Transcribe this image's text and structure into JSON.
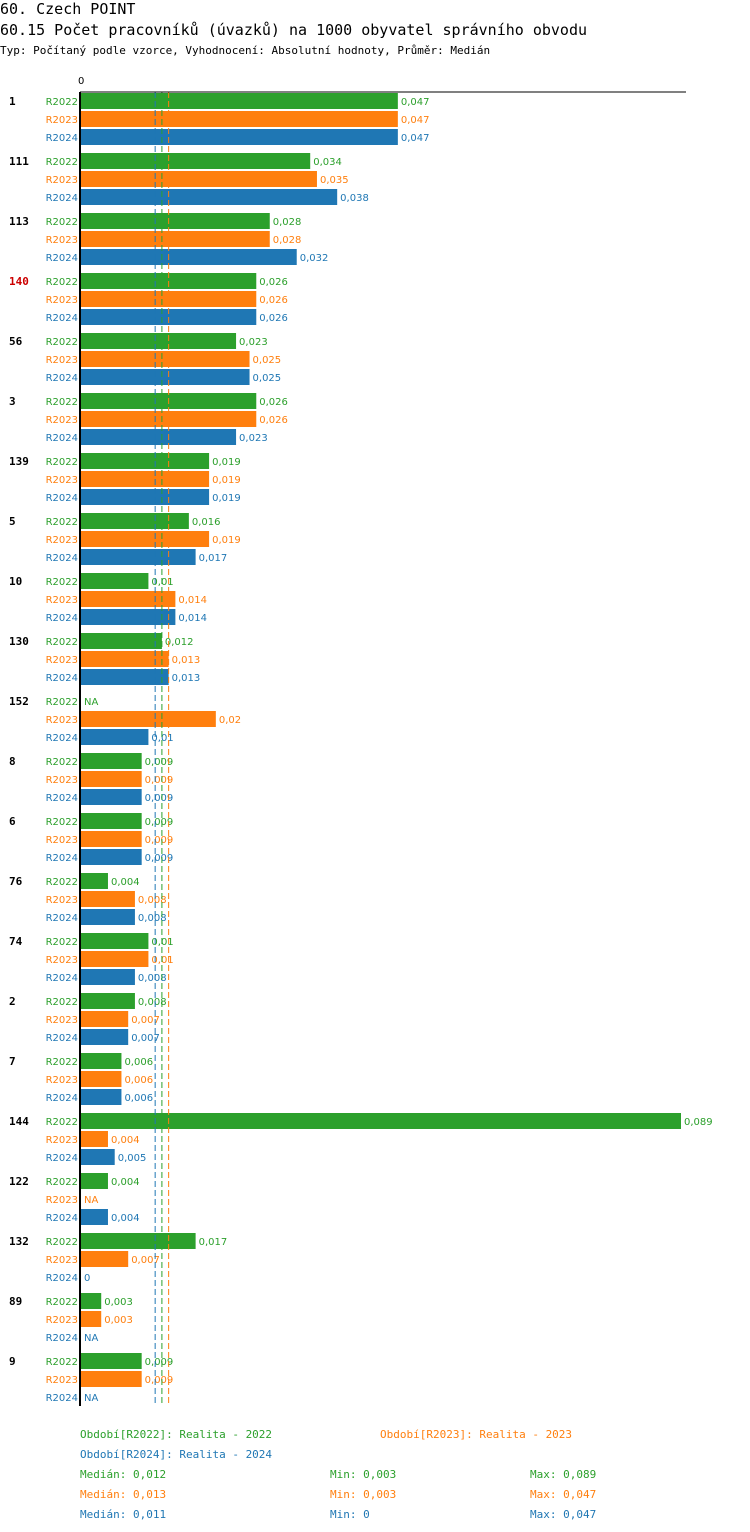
{
  "title": "60. Czech POINT",
  "subtitle": "60.15 Počet pracovníků (úvazků) na 1000 obyvatel správního obvodu",
  "type_line": "Typ: Počítaný podle vzorce, Vyhodnocení: Absolutní hodnoty, Průměr: Medián",
  "colors": {
    "R2022": "#2ca02c",
    "R2023": "#ff7f0e",
    "R2024": "#1f77b4",
    "highlight": "#cc0000"
  },
  "chart_data": {
    "type": "bar",
    "orientation": "horizontal",
    "axis_zero_label": "0",
    "xlim": [
      0,
      0.089
    ],
    "series_names": [
      "R2022",
      "R2023",
      "R2024"
    ],
    "highlighted_group": "140",
    "groups": [
      {
        "label": "1",
        "values": [
          0.047,
          0.047,
          0.047
        ],
        "labels": [
          "0,047",
          "0,047",
          "0,047"
        ]
      },
      {
        "label": "111",
        "values": [
          0.034,
          0.035,
          0.038
        ],
        "labels": [
          "0,034",
          "0,035",
          "0,038"
        ]
      },
      {
        "label": "113",
        "values": [
          0.028,
          0.028,
          0.032
        ],
        "labels": [
          "0,028",
          "0,028",
          "0,032"
        ]
      },
      {
        "label": "140",
        "values": [
          0.026,
          0.026,
          0.026
        ],
        "labels": [
          "0,026",
          "0,026",
          "0,026"
        ]
      },
      {
        "label": "56",
        "values": [
          0.023,
          0.025,
          0.025
        ],
        "labels": [
          "0,023",
          "0,025",
          "0,025"
        ]
      },
      {
        "label": "3",
        "values": [
          0.026,
          0.026,
          0.023
        ],
        "labels": [
          "0,026",
          "0,026",
          "0,023"
        ]
      },
      {
        "label": "139",
        "values": [
          0.019,
          0.019,
          0.019
        ],
        "labels": [
          "0,019",
          "0,019",
          "0,019"
        ]
      },
      {
        "label": "5",
        "values": [
          0.016,
          0.019,
          0.017
        ],
        "labels": [
          "0,016",
          "0,019",
          "0,017"
        ]
      },
      {
        "label": "10",
        "values": [
          0.01,
          0.014,
          0.014
        ],
        "labels": [
          "0,01",
          "0,014",
          "0,014"
        ]
      },
      {
        "label": "130",
        "values": [
          0.012,
          0.013,
          0.013
        ],
        "labels": [
          "0,012",
          "0,013",
          "0,013"
        ]
      },
      {
        "label": "152",
        "values": [
          null,
          0.02,
          0.01
        ],
        "labels": [
          "NA",
          "0,02",
          "0,01"
        ]
      },
      {
        "label": "8",
        "values": [
          0.009,
          0.009,
          0.009
        ],
        "labels": [
          "0,009",
          "0,009",
          "0,009"
        ]
      },
      {
        "label": "6",
        "values": [
          0.009,
          0.009,
          0.009
        ],
        "labels": [
          "0,009",
          "0,009",
          "0,009"
        ]
      },
      {
        "label": "76",
        "values": [
          0.004,
          0.008,
          0.008
        ],
        "labels": [
          "0,004",
          "0,008",
          "0,008"
        ]
      },
      {
        "label": "74",
        "values": [
          0.01,
          0.01,
          0.008
        ],
        "labels": [
          "0,01",
          "0,01",
          "0,008"
        ]
      },
      {
        "label": "2",
        "values": [
          0.008,
          0.007,
          0.007
        ],
        "labels": [
          "0,008",
          "0,007",
          "0,007"
        ]
      },
      {
        "label": "7",
        "values": [
          0.006,
          0.006,
          0.006
        ],
        "labels": [
          "0,006",
          "0,006",
          "0,006"
        ]
      },
      {
        "label": "144",
        "values": [
          0.089,
          0.004,
          0.005
        ],
        "labels": [
          "0,089",
          "0,004",
          "0,005"
        ]
      },
      {
        "label": "122",
        "values": [
          0.004,
          null,
          0.004
        ],
        "labels": [
          "0,004",
          "NA",
          "0,004"
        ]
      },
      {
        "label": "132",
        "values": [
          0.017,
          0.007,
          0
        ],
        "labels": [
          "0,017",
          "0,007",
          "0"
        ]
      },
      {
        "label": "89",
        "values": [
          0.003,
          0.003,
          null
        ],
        "labels": [
          "0,003",
          "0,003",
          "NA"
        ]
      },
      {
        "label": "9",
        "values": [
          0.009,
          0.009,
          null
        ],
        "labels": [
          "0,009",
          "0,009",
          "NA"
        ]
      }
    ],
    "medians": [
      0.012,
      0.013,
      0.011
    ]
  },
  "legend": {
    "r2022": "Období[R2022]: Realita - 2022",
    "r2023": "Období[R2023]: Realita - 2023",
    "r2024": "Období[R2024]: Realita - 2024",
    "stats": [
      {
        "median": "Medián: 0,012",
        "min": "Min: 0,003",
        "max": "Max: 0,089"
      },
      {
        "median": "Medián: 0,013",
        "min": "Min: 0,003",
        "max": "Max: 0,047"
      },
      {
        "median": "Medián: 0,011",
        "min": "Min: 0",
        "max": "Max: 0,047"
      }
    ]
  }
}
